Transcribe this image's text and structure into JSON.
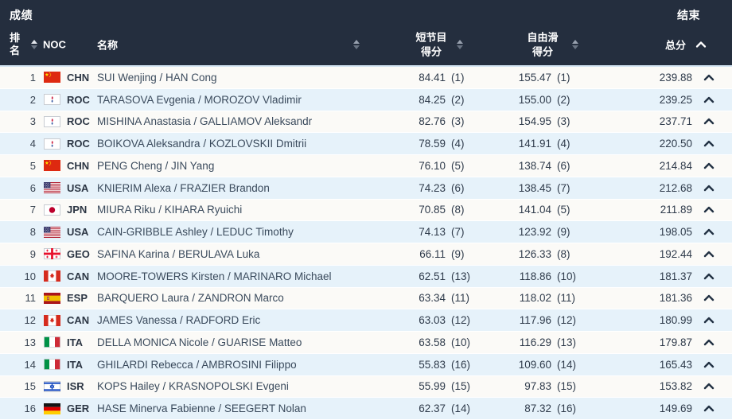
{
  "titlebar": {
    "title": "成绩",
    "status": "结束"
  },
  "header": {
    "rank": "排名",
    "noc": "NOC",
    "name": "名称",
    "short_program": "短节目得分",
    "free_skating": "自由滑得分",
    "total": "总分"
  },
  "colors": {
    "header_bg": "#242e3e",
    "header_text": "#ffffff",
    "row_bg": "#fbfaf7",
    "row_alt_bg": "#e6f2fa",
    "body_text": "#2f3b4b",
    "chevron": "#223143"
  },
  "icons": {
    "sort": "up-down-triangles",
    "row_expand": "chevron-up-icon",
    "total_sort": "chevron-up-icon"
  },
  "rows": [
    {
      "rank": "1",
      "noc": "CHN",
      "flag_icon": "flag-chn",
      "name": "SUI Wenjing / HAN Cong",
      "sp": "84.41",
      "sp_rank": "(1)",
      "fs": "155.47",
      "fs_rank": "(1)",
      "total": "239.88"
    },
    {
      "rank": "2",
      "noc": "ROC",
      "flag_icon": "flag-roc",
      "name": "TARASOVA Evgenia / MOROZOV Vladimir",
      "sp": "84.25",
      "sp_rank": "(2)",
      "fs": "155.00",
      "fs_rank": "(2)",
      "total": "239.25"
    },
    {
      "rank": "3",
      "noc": "ROC",
      "flag_icon": "flag-roc",
      "name": "MISHINA Anastasia / GALLIAMOV Aleksandr",
      "sp": "82.76",
      "sp_rank": "(3)",
      "fs": "154.95",
      "fs_rank": "(3)",
      "total": "237.71"
    },
    {
      "rank": "4",
      "noc": "ROC",
      "flag_icon": "flag-roc",
      "name": "BOIKOVA Aleksandra / KOZLOVSKII Dmitrii",
      "sp": "78.59",
      "sp_rank": "(4)",
      "fs": "141.91",
      "fs_rank": "(4)",
      "total": "220.50"
    },
    {
      "rank": "5",
      "noc": "CHN",
      "flag_icon": "flag-chn",
      "name": "PENG Cheng / JIN Yang",
      "sp": "76.10",
      "sp_rank": "(5)",
      "fs": "138.74",
      "fs_rank": "(6)",
      "total": "214.84"
    },
    {
      "rank": "6",
      "noc": "USA",
      "flag_icon": "flag-usa",
      "name": "KNIERIM Alexa / FRAZIER Brandon",
      "sp": "74.23",
      "sp_rank": "(6)",
      "fs": "138.45",
      "fs_rank": "(7)",
      "total": "212.68"
    },
    {
      "rank": "7",
      "noc": "JPN",
      "flag_icon": "flag-jpn",
      "name": "MIURA Riku / KIHARA Ryuichi",
      "sp": "70.85",
      "sp_rank": "(8)",
      "fs": "141.04",
      "fs_rank": "(5)",
      "total": "211.89"
    },
    {
      "rank": "8",
      "noc": "USA",
      "flag_icon": "flag-usa",
      "name": "CAIN-GRIBBLE Ashley / LEDUC Timothy",
      "sp": "74.13",
      "sp_rank": "(7)",
      "fs": "123.92",
      "fs_rank": "(9)",
      "total": "198.05"
    },
    {
      "rank": "9",
      "noc": "GEO",
      "flag_icon": "flag-geo",
      "name": "SAFINA Karina / BERULAVA Luka",
      "sp": "66.11",
      "sp_rank": "(9)",
      "fs": "126.33",
      "fs_rank": "(8)",
      "total": "192.44"
    },
    {
      "rank": "10",
      "noc": "CAN",
      "flag_icon": "flag-can",
      "name": "MOORE-TOWERS Kirsten / MARINARO Michael",
      "sp": "62.51",
      "sp_rank": "(13)",
      "fs": "118.86",
      "fs_rank": "(10)",
      "total": "181.37"
    },
    {
      "rank": "11",
      "noc": "ESP",
      "flag_icon": "flag-esp",
      "name": "BARQUERO Laura / ZANDRON Marco",
      "sp": "63.34",
      "sp_rank": "(11)",
      "fs": "118.02",
      "fs_rank": "(11)",
      "total": "181.36"
    },
    {
      "rank": "12",
      "noc": "CAN",
      "flag_icon": "flag-can",
      "name": "JAMES Vanessa / RADFORD Eric",
      "sp": "63.03",
      "sp_rank": "(12)",
      "fs": "117.96",
      "fs_rank": "(12)",
      "total": "180.99"
    },
    {
      "rank": "13",
      "noc": "ITA",
      "flag_icon": "flag-ita",
      "name": "DELLA MONICA Nicole / GUARISE Matteo",
      "sp": "63.58",
      "sp_rank": "(10)",
      "fs": "116.29",
      "fs_rank": "(13)",
      "total": "179.87"
    },
    {
      "rank": "14",
      "noc": "ITA",
      "flag_icon": "flag-ita",
      "name": "GHILARDI Rebecca / AMBROSINI Filippo",
      "sp": "55.83",
      "sp_rank": "(16)",
      "fs": "109.60",
      "fs_rank": "(14)",
      "total": "165.43"
    },
    {
      "rank": "15",
      "noc": "ISR",
      "flag_icon": "flag-isr",
      "name": "KOPS Hailey / KRASNOPOLSKI Evgeni",
      "sp": "55.99",
      "sp_rank": "(15)",
      "fs": "97.83",
      "fs_rank": "(15)",
      "total": "153.82"
    },
    {
      "rank": "16",
      "noc": "GER",
      "flag_icon": "flag-ger",
      "name": "HASE Minerva Fabienne / SEEGERT Nolan",
      "sp": "62.37",
      "sp_rank": "(14)",
      "fs": "87.32",
      "fs_rank": "(16)",
      "total": "149.69"
    }
  ]
}
